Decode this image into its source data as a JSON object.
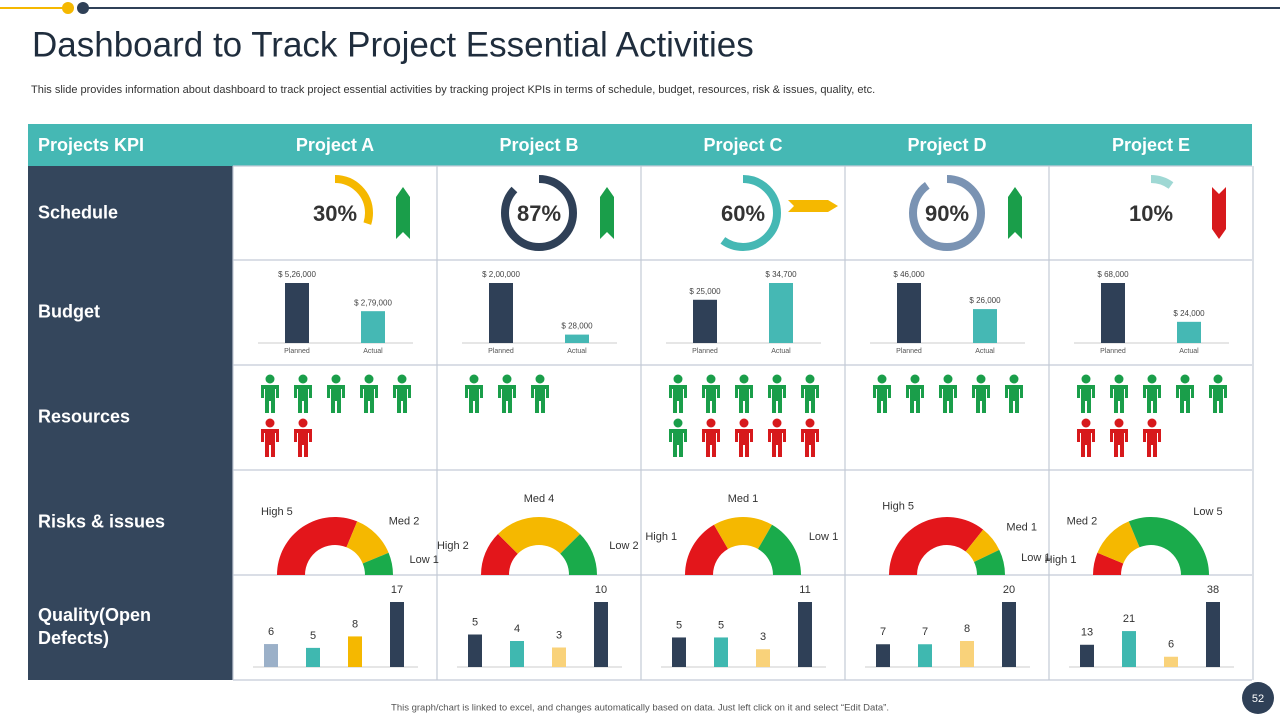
{
  "header": {
    "title": "Dashboard to Track Project Essential Activities",
    "subtitle": "This slide provides information about dashboard to track project essential activities by tracking project KPIs in terms of schedule, budget, resources, risk & issues, quality, etc."
  },
  "table": {
    "corner": "Projects KPI",
    "row_labels": [
      "Schedule",
      "Budget",
      "Resources",
      "Risks & issues",
      "Quality(Open Defects)"
    ],
    "budget_categories": [
      "Planned",
      "Actual"
    ],
    "budget_colors": [
      "#2f4057",
      "#45b8b4"
    ],
    "resource_colors": {
      "on_track": "#1a9e4a",
      "at_risk": "#d7191c"
    },
    "risk_colors": [
      "#e3161b",
      "#f5b800",
      "#1aab4b"
    ],
    "trend_colors": {
      "up": "#1a9e4a",
      "right": "#f5b800",
      "down": "#d7191c"
    },
    "projects": [
      {
        "name": "Project A",
        "schedule": {
          "value": 30,
          "label": "30%",
          "color": "#f5b800",
          "trend": "up"
        },
        "budget": {
          "values": [
            526000,
            279000
          ],
          "value_labels": [
            "$ 5,26,000",
            "$ 2,79,000"
          ]
        },
        "resources": {
          "on_track": 5,
          "at_risk": 2
        },
        "risks": [
          {
            "name": "High",
            "value": 5
          },
          {
            "name": "Med",
            "value": 2
          },
          {
            "name": "Low",
            "value": 1
          }
        ],
        "quality": {
          "values": [
            6,
            5,
            8,
            17
          ],
          "colors": [
            "#9bb0c8",
            "#3fb8b0",
            "#f5b800",
            "#2f4057"
          ]
        }
      },
      {
        "name": "Project B",
        "schedule": {
          "value": 87,
          "label": "87%",
          "color": "#2f4057",
          "trend": "up"
        },
        "budget": {
          "values": [
            200000,
            28000
          ],
          "value_labels": [
            "$ 2,00,000",
            "$ 28,000"
          ]
        },
        "resources": {
          "on_track": 3,
          "at_risk": 0
        },
        "risks": [
          {
            "name": "High",
            "value": 2
          },
          {
            "name": "Med",
            "value": 4
          },
          {
            "name": "Low",
            "value": 2
          }
        ],
        "quality": {
          "values": [
            5,
            4,
            3,
            10
          ],
          "colors": [
            "#2f4057",
            "#3fb8b0",
            "#f9d27a",
            "#2f4057"
          ]
        }
      },
      {
        "name": "Project C",
        "schedule": {
          "value": 60,
          "label": "60%",
          "color": "#45b8b4",
          "trend": "right"
        },
        "budget": {
          "values": [
            25000,
            34700
          ],
          "value_labels": [
            "$ 25,000",
            "$ 34,700"
          ]
        },
        "resources": {
          "on_track": 6,
          "at_risk": 4
        },
        "risks": [
          {
            "name": "High",
            "value": 1
          },
          {
            "name": "Med",
            "value": 1
          },
          {
            "name": "Low",
            "value": 1
          }
        ],
        "quality": {
          "values": [
            5,
            5,
            3,
            11
          ],
          "colors": [
            "#2f4057",
            "#3fb8b0",
            "#f9d27a",
            "#2f4057"
          ]
        }
      },
      {
        "name": "Project D",
        "schedule": {
          "value": 90,
          "label": "90%",
          "color": "#7a93b3",
          "trend": "up"
        },
        "budget": {
          "values": [
            46000,
            26000
          ],
          "value_labels": [
            "$ 46,000",
            "$ 26,000"
          ]
        },
        "resources": {
          "on_track": 5,
          "at_risk": 0
        },
        "risks": [
          {
            "name": "High",
            "value": 5
          },
          {
            "name": "Med",
            "value": 1
          },
          {
            "name": "Low",
            "value": 1
          }
        ],
        "quality": {
          "values": [
            7,
            7,
            8,
            20
          ],
          "colors": [
            "#2f4057",
            "#3fb8b0",
            "#f9d27a",
            "#2f4057"
          ]
        }
      },
      {
        "name": "Project E",
        "schedule": {
          "value": 10,
          "label": "10%",
          "color": "#9fd8d4",
          "trend": "down"
        },
        "budget": {
          "values": [
            68000,
            24000
          ],
          "value_labels": [
            "$ 68,000",
            "$ 24,000"
          ]
        },
        "resources": {
          "on_track": 5,
          "at_risk": 3
        },
        "risks": [
          {
            "name": "High",
            "value": 1
          },
          {
            "name": "Med",
            "value": 2
          },
          {
            "name": "Low",
            "value": 5
          }
        ],
        "quality": {
          "values": [
            13,
            21,
            6,
            38
          ],
          "colors": [
            "#2f4057",
            "#3fb8b0",
            "#f9d27a",
            "#2f4057"
          ]
        }
      }
    ]
  },
  "footer": {
    "note": "This graph/chart is linked to excel, and changes automatically based on data. Just left click on it and select “Edit Data”.",
    "page": 52
  }
}
